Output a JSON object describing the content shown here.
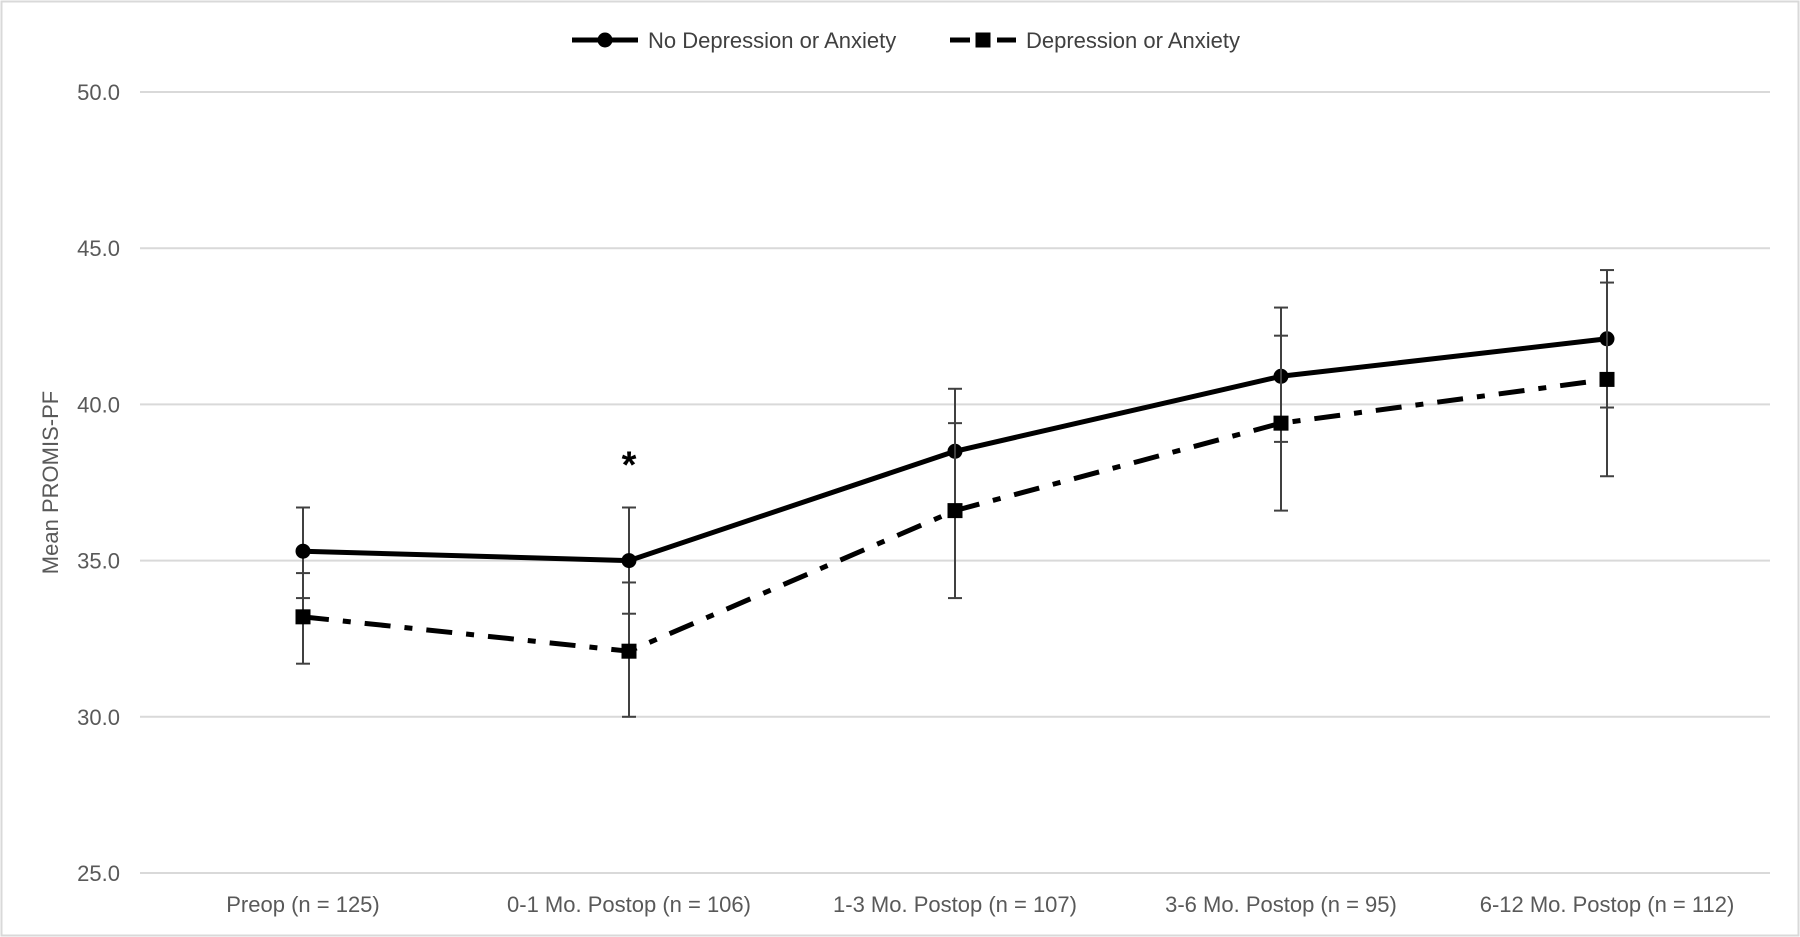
{
  "chart_data": {
    "type": "line",
    "title": "",
    "xlabel": "",
    "ylabel": "Mean PROMIS-PF",
    "ylim": [
      25,
      50
    ],
    "yticks": [
      25,
      30,
      35,
      40,
      45,
      50
    ],
    "y_tick_labels": [
      "25.0",
      "30.0",
      "35.0",
      "40.0",
      "45.0",
      "50.0"
    ],
    "grid": "horizontal",
    "legend_position": "top-center",
    "categories": [
      "Preop (n = 125)",
      "0-1 Mo. Postop (n = 106)",
      "1-3 Mo. Postop (n = 107)",
      "3-6 Mo. Postop (n = 95)",
      "6-12 Mo. Postop (n = 112)"
    ],
    "series": [
      {
        "name": "No Depression or Anxiety",
        "line_style": "solid",
        "marker": "circle",
        "color": "#000000",
        "values": [
          35.3,
          35.0,
          38.5,
          40.9,
          42.1
        ],
        "error_lower": [
          33.8,
          33.3,
          36.5,
          38.8,
          39.9
        ],
        "error_upper": [
          36.7,
          36.7,
          40.5,
          43.1,
          44.3
        ]
      },
      {
        "name": "Depression or Anxiety",
        "line_style": "dash-dot",
        "marker": "square",
        "color": "#000000",
        "values": [
          33.2,
          32.1,
          36.6,
          39.4,
          40.8
        ],
        "error_lower": [
          31.7,
          30.0,
          33.8,
          36.6,
          37.7
        ],
        "error_upper": [
          34.6,
          34.3,
          39.4,
          42.2,
          43.9
        ]
      }
    ],
    "annotations": [
      {
        "text": "*",
        "category_index": 1,
        "y": 38.3
      }
    ]
  }
}
